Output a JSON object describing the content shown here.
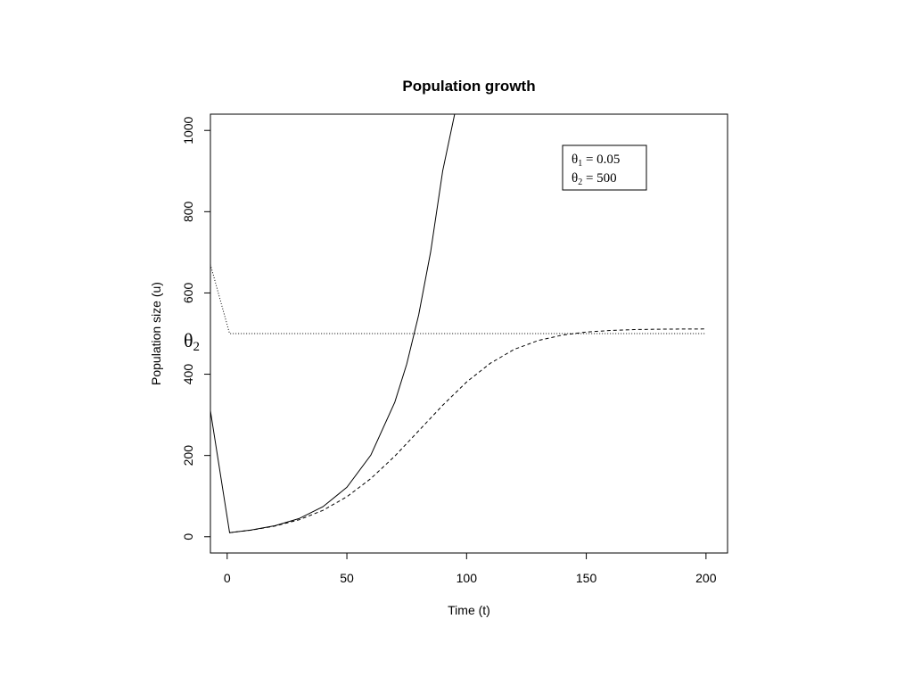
{
  "chart_data": {
    "type": "line",
    "title": "Population growth",
    "xlabel": "Time (t)",
    "ylabel": "Population size (u)",
    "xlim": [
      -7,
      209
    ],
    "ylim": [
      -40,
      1040
    ],
    "x_ticks": [
      0,
      50,
      100,
      150,
      200
    ],
    "y_ticks": [
      0,
      200,
      400,
      600,
      800,
      1000
    ],
    "x_tick_labels": [
      "0",
      "50",
      "100",
      "150",
      "200"
    ],
    "y_tick_labels": [
      "0",
      "200",
      "400",
      "600",
      "800",
      "1000"
    ],
    "legend": {
      "position": "top-right",
      "entries": [
        {
          "symbol": "θ",
          "sub": "1",
          "text": " = 0.05"
        },
        {
          "symbol": "θ",
          "sub": "2",
          "text": " = 500"
        }
      ]
    },
    "annotation": {
      "symbol": "θ",
      "sub": "2",
      "y": 500
    },
    "series": [
      {
        "style": "solid",
        "x": [
          -7,
          1,
          10,
          20,
          30,
          40,
          50,
          60,
          70,
          75,
          80,
          85,
          90,
          95
        ],
        "y": [
          310,
          10,
          16.5,
          27.2,
          44.8,
          73.9,
          121.8,
          200.9,
          331.2,
          425.2,
          546,
          701.1,
          900.2,
          1040
        ]
      },
      {
        "style": "dashed",
        "x": [
          1,
          10,
          20,
          30,
          40,
          50,
          60,
          70,
          80,
          90,
          100,
          110,
          120,
          130,
          140,
          150,
          160,
          170,
          180,
          190,
          200
        ],
        "y": [
          10,
          16.3,
          26.3,
          41.7,
          65,
          98.5,
          143,
          198.4,
          260.7,
          323.6,
          380.7,
          427.3,
          461.3,
          483,
          496.2,
          503.7,
          507.7,
          509.8,
          510.8,
          511.3,
          511.5
        ]
      },
      {
        "style": "dotted",
        "x": [
          -7,
          1,
          200
        ],
        "y": [
          670,
          500,
          500
        ]
      }
    ]
  }
}
